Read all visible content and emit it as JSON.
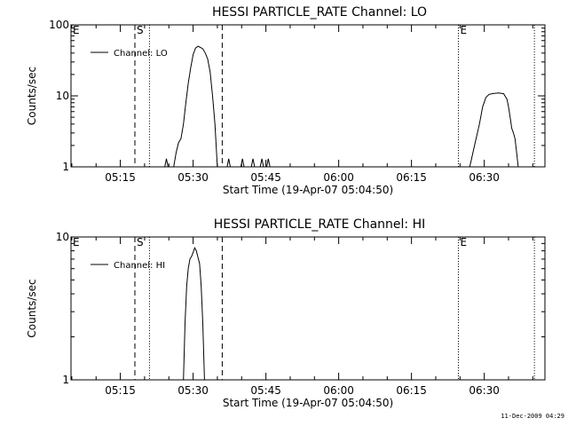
{
  "footer": {
    "timestamp": "11-Dec-2009 04:29"
  },
  "chart_data": [
    {
      "type": "line",
      "title": "HESSI PARTICLE_RATE Channel: LO",
      "xlabel": "Start Time (19-Apr-07 05:04:50)",
      "ylabel": "Counts/sec",
      "y_scale": "log",
      "ylim": [
        1,
        100
      ],
      "xlim": [
        "05:04:50",
        "06:42:30"
      ],
      "x_ticks": [
        "05:15",
        "05:30",
        "05:45",
        "06:00",
        "06:15",
        "06:30"
      ],
      "y_ticks": [
        "1",
        "10",
        "100"
      ],
      "legend": {
        "position": "top-left",
        "entries": [
          "Channel: LO"
        ]
      },
      "event_lines": [
        {
          "time": "05:04:50",
          "label": "E",
          "style": "none"
        },
        {
          "time": "05:18:00",
          "label": "S",
          "style": "dashed"
        },
        {
          "time": "05:21:00",
          "label": "",
          "style": "dotted"
        },
        {
          "time": "05:36:00",
          "label": "",
          "style": "dashed"
        },
        {
          "time": "06:24:40",
          "label": "E",
          "style": "dotted"
        },
        {
          "time": "06:40:20",
          "label": "",
          "style": "dotted"
        }
      ],
      "series": [
        {
          "name": "Channel: LO",
          "segments": [
            [
              [
                "05:24:10",
                1
              ],
              [
                "05:24:30",
                1.3
              ],
              [
                "05:24:50",
                1
              ]
            ],
            [
              [
                "05:26:00",
                1
              ],
              [
                "05:26:30",
                1.6
              ],
              [
                "05:27:00",
                2.2
              ],
              [
                "05:27:30",
                2.5
              ],
              [
                "05:28:00",
                4
              ],
              [
                "05:28:30",
                8
              ],
              [
                "05:29:00",
                15
              ],
              [
                "05:29:30",
                25
              ],
              [
                "05:30:00",
                38
              ],
              [
                "05:30:30",
                47
              ],
              [
                "05:31:00",
                50
              ],
              [
                "05:31:30",
                48
              ],
              [
                "05:32:00",
                46
              ],
              [
                "05:32:30",
                40
              ],
              [
                "05:33:00",
                33
              ],
              [
                "05:33:30",
                22
              ],
              [
                "05:34:00",
                10
              ],
              [
                "05:34:30",
                4
              ],
              [
                "05:35:00",
                1
              ]
            ],
            [
              [
                "05:37:00",
                1
              ],
              [
                "05:37:20",
                1.3
              ],
              [
                "05:37:40",
                1
              ]
            ],
            [
              [
                "05:39:50",
                1
              ],
              [
                "05:40:10",
                1.3
              ],
              [
                "05:40:30",
                1
              ]
            ],
            [
              [
                "05:42:00",
                1
              ],
              [
                "05:42:20",
                1.3
              ],
              [
                "05:42:40",
                1
              ]
            ],
            [
              [
                "05:43:50",
                1
              ],
              [
                "05:44:10",
                1.3
              ],
              [
                "05:44:30",
                1
              ]
            ],
            [
              [
                "05:45:10",
                1
              ],
              [
                "05:45:30",
                1.3
              ],
              [
                "05:45:50",
                1
              ]
            ],
            [
              [
                "06:27:00",
                1
              ],
              [
                "06:28:00",
                2
              ],
              [
                "06:29:00",
                4
              ],
              [
                "06:29:40",
                7
              ],
              [
                "06:30:20",
                9.5
              ],
              [
                "06:31:00",
                10.5
              ],
              [
                "06:32:00",
                10.8
              ],
              [
                "06:33:00",
                11
              ],
              [
                "06:34:00",
                10.7
              ],
              [
                "06:34:40",
                9
              ],
              [
                "06:35:00",
                7
              ],
              [
                "06:35:20",
                5
              ],
              [
                "06:35:40",
                3.5
              ],
              [
                "06:36:00",
                3
              ],
              [
                "06:36:20",
                2.5
              ],
              [
                "06:36:40",
                1.6
              ],
              [
                "06:37:00",
                1
              ]
            ]
          ]
        }
      ]
    },
    {
      "type": "line",
      "title": "HESSI PARTICLE_RATE Channel: HI",
      "xlabel": "Start Time (19-Apr-07 05:04:50)",
      "ylabel": "Counts/sec",
      "y_scale": "log",
      "ylim": [
        1,
        10
      ],
      "xlim": [
        "05:04:50",
        "06:42:30"
      ],
      "x_ticks": [
        "05:15",
        "05:30",
        "05:45",
        "06:00",
        "06:15",
        "06:30"
      ],
      "y_ticks": [
        "1",
        "10"
      ],
      "legend": {
        "position": "top-left",
        "entries": [
          "Channel: HI"
        ]
      },
      "event_lines": [
        {
          "time": "05:04:50",
          "label": "E",
          "style": "none"
        },
        {
          "time": "05:18:00",
          "label": "S",
          "style": "dashed"
        },
        {
          "time": "05:21:00",
          "label": "",
          "style": "dotted"
        },
        {
          "time": "05:36:00",
          "label": "",
          "style": "dashed"
        },
        {
          "time": "06:24:40",
          "label": "E",
          "style": "dotted"
        },
        {
          "time": "06:40:20",
          "label": "",
          "style": "dotted"
        }
      ],
      "series": [
        {
          "name": "Channel: HI",
          "segments": [
            [
              [
                "05:28:00",
                1
              ],
              [
                "05:28:20",
                2.5
              ],
              [
                "05:28:40",
                4.5
              ],
              [
                "05:29:00",
                6
              ],
              [
                "05:29:20",
                7
              ],
              [
                "05:29:40",
                7.3
              ],
              [
                "05:30:00",
                7.8
              ],
              [
                "05:30:20",
                8.4
              ],
              [
                "05:30:40",
                8
              ],
              [
                "05:31:00",
                7.2
              ],
              [
                "05:31:20",
                6.5
              ],
              [
                "05:31:40",
                4.5
              ],
              [
                "05:32:00",
                2.5
              ],
              [
                "05:32:20",
                1
              ]
            ]
          ]
        }
      ]
    }
  ]
}
